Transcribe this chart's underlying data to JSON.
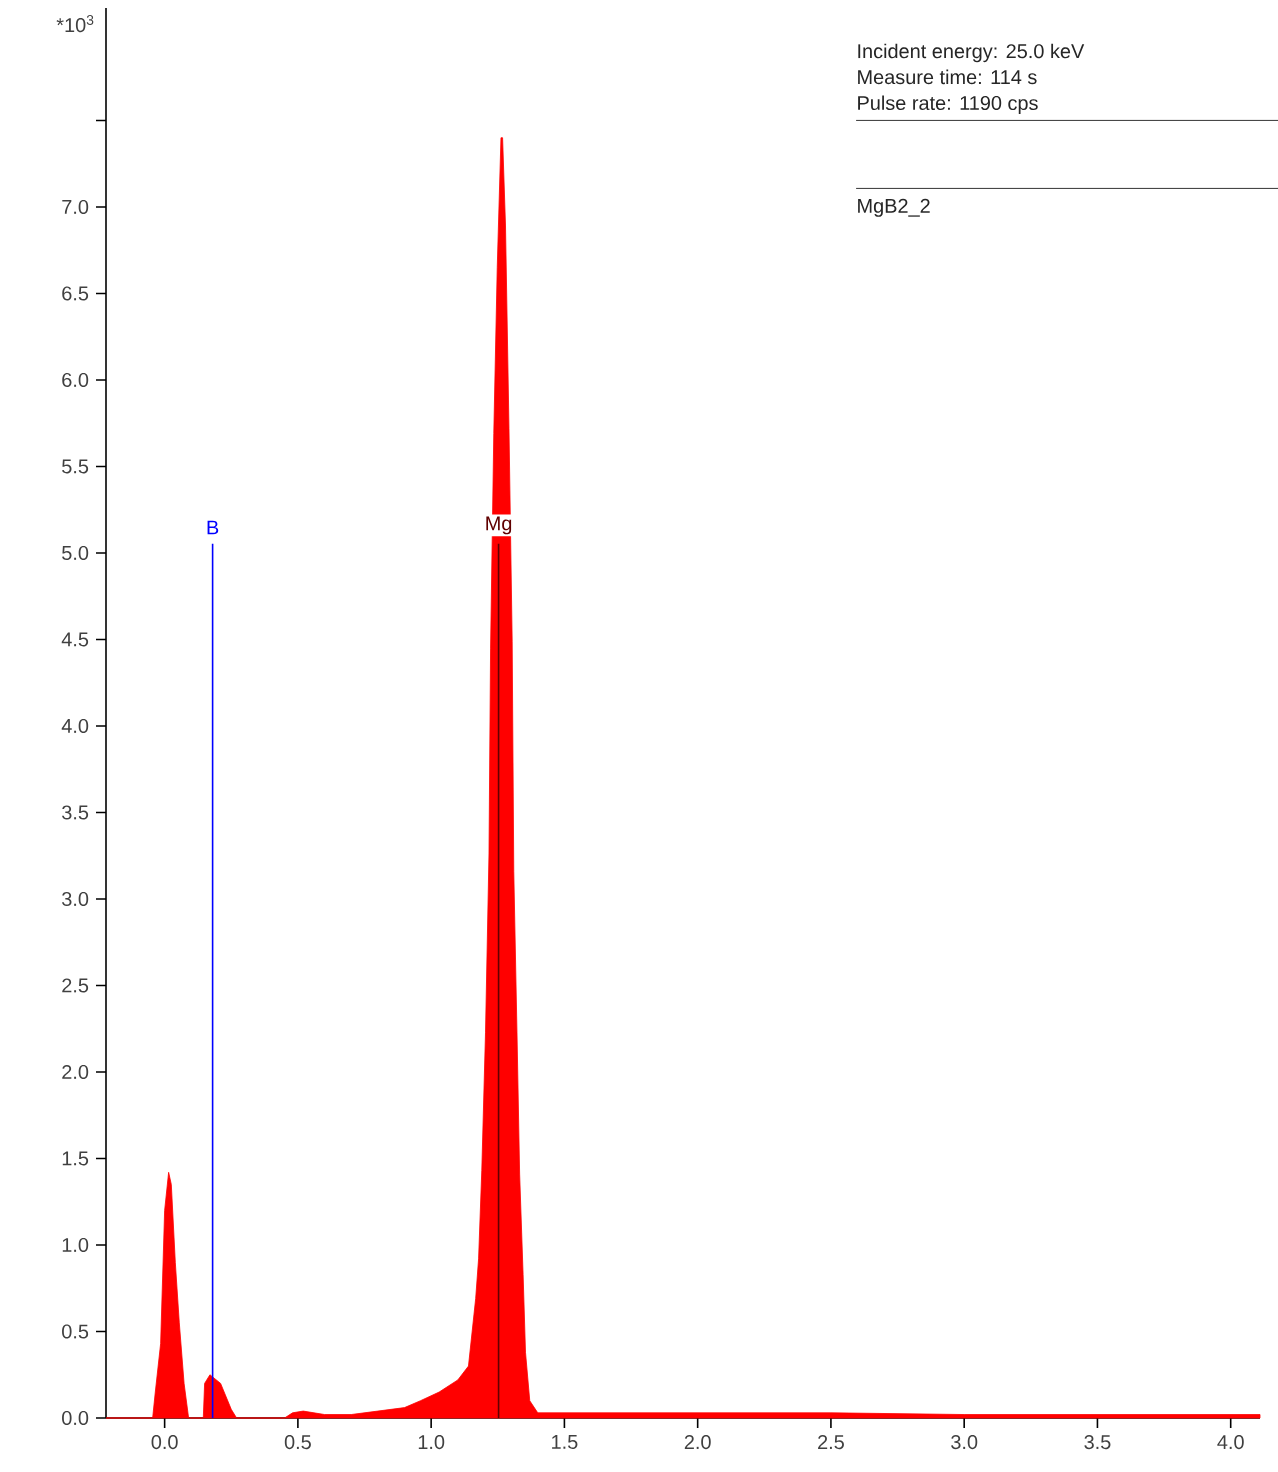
{
  "chart_data": {
    "type": "area",
    "ylabel": "*10$^{3}$",
    "annotations": [
      "Incident energy: 25.0 keV",
      "Measure time: 114 s",
      "Pulse rate: 1190 cps",
      "MgB2_2"
    ],
    "x": [
      -0.22,
      -0.06,
      -0.045,
      -0.035,
      -0.015,
      0.0,
      0.015,
      0.025,
      0.04,
      0.055,
      0.073,
      0.09,
      0.145,
      0.15,
      0.17,
      0.21,
      0.25,
      0.27,
      0.45,
      0.48,
      0.52,
      0.6,
      0.7,
      0.8,
      0.9,
      0.96,
      1.03,
      1.1,
      1.14,
      1.167,
      1.178,
      1.19,
      1.204,
      1.217,
      1.223,
      1.235,
      1.248,
      1.262,
      1.268,
      1.279,
      1.292,
      1.304,
      1.31,
      1.322,
      1.332,
      1.345,
      1.354,
      1.37,
      1.4,
      1.6,
      2.0,
      2.5,
      3.0,
      3.5,
      4.0,
      4.11
    ],
    "series": [
      {
        "color": "#ff0000",
        "values": [
          0,
          0,
          0,
          0.15,
          0.43,
          1.2,
          1.42,
          1.35,
          0.9,
          0.55,
          0.2,
          0,
          0,
          0.2,
          0.25,
          0.2,
          0.05,
          0,
          0,
          0.03,
          0.04,
          0.02,
          0.02,
          0.04,
          0.06,
          0.1,
          0.15,
          0.22,
          0.3,
          0.69,
          0.92,
          1.43,
          2.23,
          3.26,
          4.45,
          5.69,
          6.65,
          7.4,
          7.4,
          6.89,
          5.72,
          4.49,
          3.16,
          2.23,
          1.41,
          0.83,
          0.38,
          0.1,
          0.03,
          0.03,
          0.03,
          0.03,
          0.02,
          0.02,
          0.02,
          0.02
        ]
      }
    ],
    "xlim": [
      -0.22,
      4.11
    ],
    "ylim": [
      0,
      8.15
    ],
    "xticks": [
      {
        "value": 0.0,
        "label": "0.0"
      },
      {
        "value": 0.5,
        "label": "0.5"
      },
      {
        "value": 1.0,
        "label": "1.0"
      },
      {
        "value": 1.5,
        "label": "1.5"
      },
      {
        "value": 2.0,
        "label": "2.0"
      },
      {
        "value": 2.5,
        "label": "2.5"
      },
      {
        "value": 3.0,
        "label": "3.0"
      },
      {
        "value": 3.5,
        "label": "3.5"
      },
      {
        "value": 4.0,
        "label": "4.0"
      }
    ],
    "yticks": [
      {
        "value": 0.0,
        "label": "0.0"
      },
      {
        "value": 0.5,
        "label": "0.5"
      },
      {
        "value": 1.0,
        "label": "1.0"
      },
      {
        "value": 1.5,
        "label": "1.5"
      },
      {
        "value": 2.0,
        "label": "2.0"
      },
      {
        "value": 2.5,
        "label": "2.5"
      },
      {
        "value": 3.0,
        "label": "3.0"
      },
      {
        "value": 3.5,
        "label": "3.5"
      },
      {
        "value": 4.0,
        "label": "4.0"
      },
      {
        "value": 4.5,
        "label": "4.5"
      },
      {
        "value": 5.0,
        "label": "5.0"
      },
      {
        "value": 5.5,
        "label": "5.5"
      },
      {
        "value": 6.0,
        "label": "6.0"
      },
      {
        "value": 6.5,
        "label": "6.5"
      },
      {
        "value": 7.0,
        "label": "7.0"
      },
      {
        "value": 7.5,
        "label": null
      }
    ],
    "ref_lines": [
      {
        "axis": "x",
        "value": 0.18,
        "label": "B",
        "color": "#0000ff"
      },
      {
        "axis": "x",
        "value": 1.253,
        "label": "Mg",
        "color": "#600000"
      }
    ],
    "grid": false,
    "legend": false,
    "marker": "none"
  }
}
